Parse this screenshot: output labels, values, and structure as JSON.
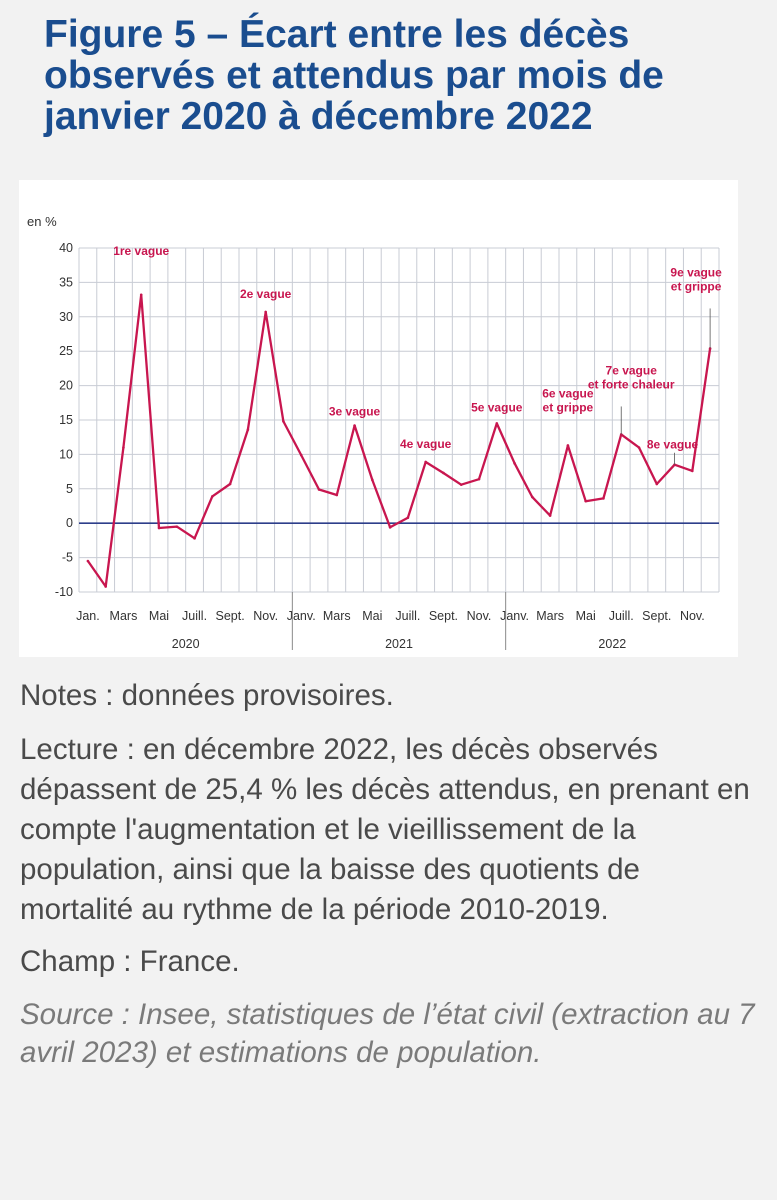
{
  "header": {
    "title": "Figure 5 – Écart entre les décès observés et attendus par mois de janvier 2020 à décembre 2022"
  },
  "colors": {
    "title": "#1a4d8f",
    "series": "#c8164f",
    "grid": "#c8ccd4",
    "zero_line": "#2d3e8a"
  },
  "chart_data": {
    "type": "line",
    "unit_label": "en %",
    "ylim": [
      -10,
      40
    ],
    "yticks": [
      -10,
      -5,
      0,
      5,
      10,
      15,
      20,
      25,
      30,
      35,
      40
    ],
    "grid": true,
    "x_tick_labels": [
      "Jan.",
      "Mars",
      "Mai",
      "Juill.",
      "Sept.",
      "Nov.",
      "Janv.",
      "Mars",
      "Mai",
      "Juill.",
      "Sept.",
      "Nov.",
      "Janv.",
      "Mars",
      "Mai",
      "Juill.",
      "Sept.",
      "Nov."
    ],
    "years": [
      "2020",
      "2021",
      "2022"
    ],
    "x": [
      "2020-01",
      "2020-02",
      "2020-03",
      "2020-04",
      "2020-05",
      "2020-06",
      "2020-07",
      "2020-08",
      "2020-09",
      "2020-10",
      "2020-11",
      "2020-12",
      "2021-01",
      "2021-02",
      "2021-03",
      "2021-04",
      "2021-05",
      "2021-06",
      "2021-07",
      "2021-08",
      "2021-09",
      "2021-10",
      "2021-11",
      "2021-12",
      "2022-01",
      "2022-02",
      "2022-03",
      "2022-04",
      "2022-05",
      "2022-06",
      "2022-07",
      "2022-08",
      "2022-09",
      "2022-10",
      "2022-11",
      "2022-12"
    ],
    "values": [
      -5.5,
      -9.2,
      11.0,
      33.2,
      -0.7,
      -0.5,
      -2.2,
      3.9,
      5.7,
      13.6,
      30.7,
      14.8,
      9.9,
      4.9,
      4.1,
      14.2,
      6.3,
      -0.6,
      0.8,
      8.9,
      7.3,
      5.6,
      6.4,
      14.5,
      8.7,
      3.8,
      1.1,
      11.3,
      3.2,
      3.6,
      12.9,
      11.0,
      5.7,
      8.5,
      7.6,
      25.4
    ],
    "annotations": [
      {
        "lines": [
          "1re vague"
        ],
        "x_index": 3,
        "sup_index": 0
      },
      {
        "lines": [
          "2e vague"
        ],
        "x_index": 10,
        "sup_index": 0
      },
      {
        "lines": [
          "3e vague"
        ],
        "x_index": 15,
        "sup_index": 0
      },
      {
        "lines": [
          "4e vague"
        ],
        "x_index": 19,
        "sup_index": 0
      },
      {
        "lines": [
          "5e vague"
        ],
        "x_index": 23,
        "sup_index": 0
      },
      {
        "lines": [
          "6e vague",
          "et grippe"
        ],
        "x_index": 27,
        "sup_index": 0
      },
      {
        "lines": [
          "7e vague",
          "et forte chaleur"
        ],
        "x_index": 30,
        "sup_index": 0
      },
      {
        "lines": [
          "8e vague"
        ],
        "x_index": 33,
        "sup_index": 0
      },
      {
        "lines": [
          "9e vague",
          "et grippe"
        ],
        "x_index": 35,
        "sup_index": 0
      }
    ]
  },
  "notes": {
    "provisional": "Notes : données provisoires.",
    "reading": "Lecture : en décembre 2022, les décès observés dépassent de 25,4 % les décès attendus, en prenant en compte l'augmentation et le vieillissement de la population, ainsi que la baisse des quotients de mortalité au rythme de la période 2010-2019.",
    "scope": "Champ : France.",
    "source": "Source : Insee, statistiques de l’état civil (extraction au 7 avril 2023) et estimations de population."
  }
}
